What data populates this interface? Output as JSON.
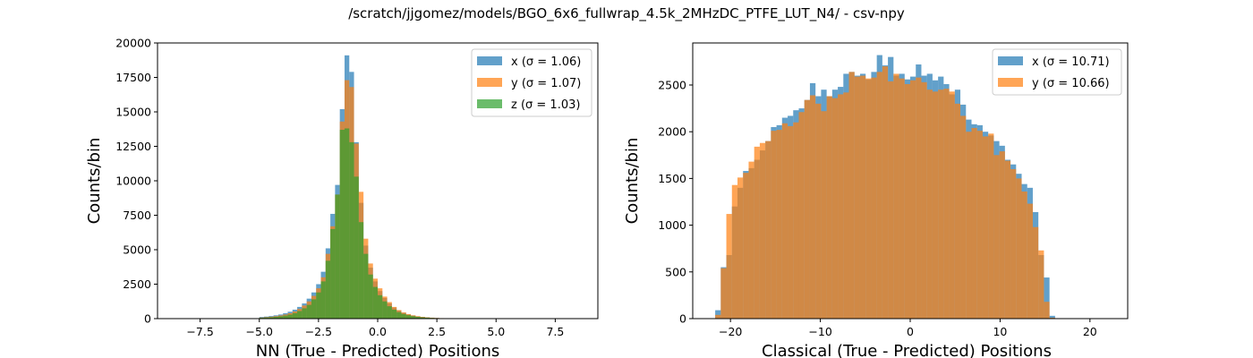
{
  "figure": {
    "suptitle": "/scratch/jjgomez/models/BGO_6x6_fullwrap_4.5k_2MHzDC_PTFE_LUT_N4/ - csv-npy"
  },
  "chart_data": [
    {
      "type": "bar",
      "histogram": true,
      "xlabel": "NN (True - Predicted) Positions",
      "ylabel": "Counts/bin",
      "xlim": [
        -9.3,
        9.3
      ],
      "ylim": [
        0,
        20000
      ],
      "xticks": [
        -7.5,
        -5.0,
        -2.5,
        0.0,
        2.5,
        5.0,
        7.5
      ],
      "xtick_labels": [
        "−7.5",
        "−5.0",
        "−2.5",
        "0.0",
        "2.5",
        "5.0",
        "7.5"
      ],
      "yticks": [
        0,
        2500,
        5000,
        7500,
        10000,
        12500,
        15000,
        17500,
        20000
      ],
      "ytick_labels": [
        "0",
        "2500",
        "5000",
        "7500",
        "10000",
        "12500",
        "15000",
        "17500",
        "20000"
      ],
      "grid": false,
      "legend_position": "top-right",
      "series": [
        {
          "name": "x",
          "legend_label": "x (σ = 1.06)",
          "color": "#1f77b4",
          "opacity": 0.7,
          "bin_start": -5.0,
          "bin_width": 0.2,
          "values": [
            120,
            150,
            190,
            240,
            300,
            390,
            500,
            650,
            850,
            1100,
            1450,
            1900,
            2500,
            3400,
            5100,
            7600,
            9700,
            15200,
            19100,
            17900,
            12800,
            8400,
            5300,
            3700,
            2700,
            2000,
            1500,
            1100,
            800,
            580,
            420,
            300,
            220,
            160,
            120,
            90,
            60,
            45,
            30,
            20,
            10
          ]
        },
        {
          "name": "y",
          "legend_label": "y (σ = 1.07)",
          "color": "#ff7f0e",
          "opacity": 0.7,
          "bin_start": -5.0,
          "bin_width": 0.2,
          "values": [
            80,
            110,
            140,
            180,
            230,
            300,
            390,
            520,
            700,
            950,
            1250,
            1650,
            2200,
            3000,
            4700,
            6700,
            9000,
            14300,
            17300,
            16800,
            12700,
            9200,
            5800,
            4000,
            2900,
            2200,
            1600,
            1200,
            850,
            620,
            450,
            330,
            240,
            180,
            130,
            95,
            70,
            50,
            35,
            22,
            12
          ]
        },
        {
          "name": "z",
          "legend_label": "z (σ = 1.03)",
          "color": "#2ca02c",
          "opacity": 0.7,
          "bin_start": -5.0,
          "bin_width": 0.2,
          "values": [
            60,
            80,
            100,
            130,
            170,
            220,
            290,
            400,
            550,
            750,
            1000,
            1400,
            1900,
            2700,
            4200,
            6500,
            9000,
            13700,
            13800,
            12800,
            10300,
            7000,
            4700,
            3200,
            2300,
            1700,
            1250,
            900,
            650,
            470,
            340,
            250,
            180,
            130,
            95,
            70,
            50,
            35,
            25,
            15,
            8
          ]
        }
      ]
    },
    {
      "type": "bar",
      "histogram": true,
      "xlabel": "Classical (True - Predicted) Positions",
      "ylabel": "Counts/bin",
      "xlim": [
        -24.2,
        24.2
      ],
      "ylim": [
        0,
        2950
      ],
      "xticks": [
        -20,
        -10,
        0,
        10,
        20
      ],
      "xtick_labels": [
        "−20",
        "−10",
        "0",
        "10",
        "20"
      ],
      "yticks": [
        0,
        500,
        1000,
        1500,
        2000,
        2500
      ],
      "ytick_labels": [
        "0",
        "500",
        "1000",
        "1500",
        "2000",
        "2500"
      ],
      "grid": false,
      "legend_position": "top-right",
      "series": [
        {
          "name": "x",
          "legend_label": "x (σ = 10.71)",
          "color": "#1f77b4",
          "opacity": 0.7,
          "bin_start": -21.7,
          "bin_width": 0.62,
          "values": [
            90,
            550,
            680,
            1200,
            1400,
            1580,
            1610,
            1700,
            1800,
            1900,
            2050,
            2070,
            2150,
            2170,
            2230,
            2250,
            2340,
            2520,
            2380,
            2450,
            2380,
            2450,
            2480,
            2620,
            2640,
            2600,
            2620,
            2560,
            2640,
            2820,
            2710,
            2800,
            2600,
            2620,
            2560,
            2590,
            2720,
            2600,
            2620,
            2550,
            2590,
            2510,
            2400,
            2450,
            2290,
            2130,
            2080,
            2070,
            2000,
            1960,
            1900,
            1850,
            1700,
            1650,
            1550,
            1440,
            1400,
            1140,
            680,
            440,
            30
          ]
        },
        {
          "name": "y",
          "legend_label": "y (σ = 10.66)",
          "color": "#ff7f0e",
          "opacity": 0.7,
          "bin_start": -21.7,
          "bin_width": 0.62,
          "values": [
            40,
            540,
            1120,
            1430,
            1510,
            1560,
            1680,
            1840,
            1880,
            1900,
            2010,
            2020,
            2090,
            2060,
            2100,
            2210,
            2340,
            2390,
            2300,
            2220,
            2380,
            2360,
            2400,
            2420,
            2640,
            2590,
            2600,
            2570,
            2580,
            2640,
            2700,
            2540,
            2620,
            2570,
            2510,
            2550,
            2580,
            2530,
            2450,
            2430,
            2450,
            2460,
            2430,
            2300,
            2170,
            2000,
            2040,
            2010,
            1950,
            1980,
            1750,
            1790,
            1690,
            1600,
            1500,
            1360,
            1230,
            980,
            730,
            180,
            10
          ]
        }
      ]
    }
  ]
}
